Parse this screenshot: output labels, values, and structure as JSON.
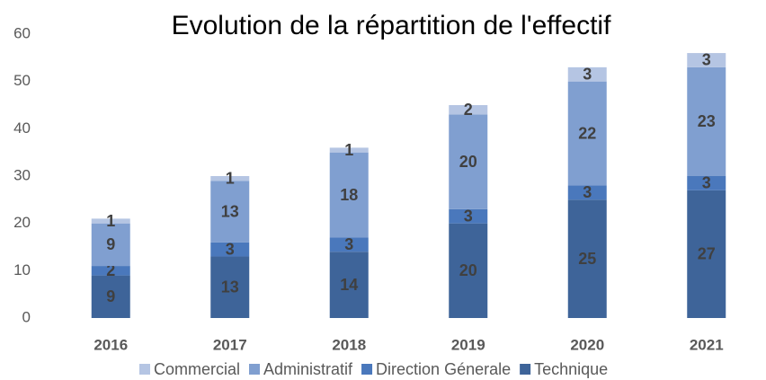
{
  "chart_data": {
    "type": "stacked_bar",
    "title": "Evolution de la répartition de l'effectif",
    "categories": [
      "2016",
      "2017",
      "2018",
      "2019",
      "2020",
      "2021"
    ],
    "series": [
      {
        "name": "Technique",
        "color": "#3e6499",
        "values": [
          9,
          13,
          14,
          20,
          25,
          27
        ]
      },
      {
        "name": "Direction Génerale",
        "color": "#4a78bc",
        "values": [
          2,
          3,
          3,
          3,
          3,
          3
        ]
      },
      {
        "name": "Administratif",
        "color": "#809fd0",
        "values": [
          9,
          13,
          18,
          20,
          22,
          23
        ]
      },
      {
        "name": "Commercial",
        "color": "#b5c5e3",
        "values": [
          1,
          1,
          1,
          2,
          3,
          3
        ]
      }
    ],
    "ylim": [
      0,
      60
    ],
    "yticks": [
      0,
      10,
      20,
      30,
      40,
      50,
      60
    ],
    "grid": false,
    "legend": "bottom"
  }
}
